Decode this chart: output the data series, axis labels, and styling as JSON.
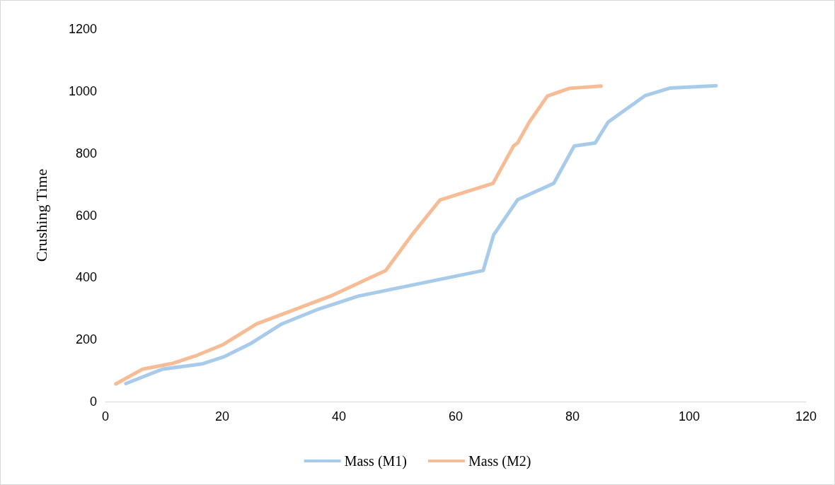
{
  "chart_data": {
    "type": "line",
    "ylabel": "Crushing Time",
    "xlim": [
      0,
      120
    ],
    "xticks": [
      0,
      20,
      40,
      60,
      80,
      100,
      120
    ],
    "ylim": [
      0,
      1200
    ],
    "yticks": [
      0,
      200,
      400,
      600,
      800,
      1000,
      1200
    ],
    "grid": false,
    "legend": "bottom",
    "marker": "none",
    "line_style": "solid",
    "series": [
      {
        "name": "Mass (M1)",
        "color": "#a9cbea",
        "x": [
          3.5,
          9.7,
          16.7,
          20.4,
          24.8,
          30.2,
          36.1,
          43.4,
          64.7,
          66.5,
          70.6,
          76.8,
          80.3,
          83.9,
          86.1,
          92.4,
          96.8,
          104.6
        ],
        "values": [
          58,
          104,
          122,
          145,
          186,
          250,
          295,
          340,
          422,
          537,
          650,
          703,
          823,
          833,
          900,
          985,
          1010,
          1017
        ]
      },
      {
        "name": "Mass (M2)",
        "color": "#f5bc95",
        "x": [
          1.8,
          6.3,
          11.5,
          15.4,
          20.2,
          25.9,
          38.6,
          48.0,
          52.5,
          57.3,
          66.4,
          69.9,
          70.6,
          72.6,
          75.7,
          79.5,
          84.9
        ],
        "values": [
          57,
          104,
          123,
          147,
          184,
          250,
          340,
          422,
          537,
          649,
          703,
          823,
          833,
          900,
          984,
          1009,
          1016
        ]
      }
    ]
  }
}
